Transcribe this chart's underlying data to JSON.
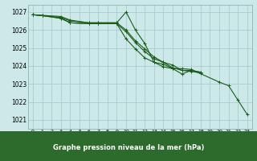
{
  "title": "Graphe pression niveau de la mer (hPa)",
  "background_color": "#cce8e8",
  "grid_color": "#aacccc",
  "line_color": "#1a5c1a",
  "label_bg": "#2d6b2d",
  "ylim": [
    1020.5,
    1027.4
  ],
  "yticks": [
    1021,
    1022,
    1023,
    1024,
    1025,
    1026,
    1027
  ],
  "s1_x": [
    0,
    1,
    3,
    4,
    6,
    7,
    9,
    10,
    11,
    12,
    13,
    14,
    15,
    16,
    17,
    20,
    21,
    22,
    23
  ],
  "s1_y": [
    1026.85,
    1026.8,
    1026.7,
    1026.5,
    1026.4,
    1026.4,
    1026.4,
    1027.0,
    1026.0,
    1025.25,
    1024.2,
    1024.1,
    1023.85,
    1023.85,
    1023.8,
    1023.1,
    1022.9,
    1022.1,
    1021.3
  ],
  "s2_x": [
    0,
    1,
    3,
    4,
    6,
    7,
    9,
    10,
    11,
    12,
    13,
    14,
    15,
    16,
    17,
    18
  ],
  "s2_y": [
    1026.85,
    1026.8,
    1026.65,
    1026.4,
    1026.35,
    1026.35,
    1026.35,
    1025.9,
    1025.3,
    1024.8,
    1024.4,
    1024.2,
    1023.9,
    1023.75,
    1023.7,
    1023.6
  ],
  "s3_x": [
    0,
    1,
    3,
    4,
    6,
    7,
    9,
    10,
    11,
    12,
    13,
    14,
    15,
    16,
    17,
    18
  ],
  "s3_y": [
    1026.85,
    1026.8,
    1026.65,
    1026.4,
    1026.35,
    1026.35,
    1026.35,
    1025.5,
    1024.95,
    1024.45,
    1024.2,
    1023.95,
    1023.85,
    1023.55,
    1023.75,
    1023.65
  ],
  "s4_x": [
    0,
    3,
    4,
    6,
    7,
    9,
    10,
    11,
    12,
    13,
    14,
    15,
    16,
    17,
    18
  ],
  "s4_y": [
    1026.85,
    1026.75,
    1026.55,
    1026.4,
    1026.4,
    1026.4,
    1026.0,
    1025.4,
    1024.95,
    1024.5,
    1024.2,
    1024.05,
    1023.75,
    1023.75,
    1023.65
  ]
}
